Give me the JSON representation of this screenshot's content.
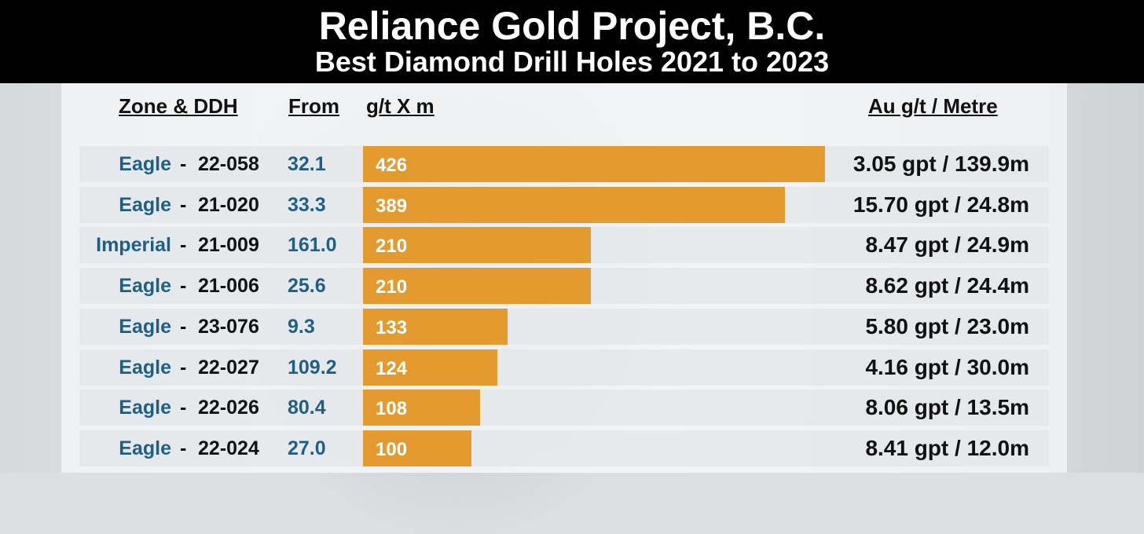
{
  "header": {
    "title": "Reliance Gold Project, B.C.",
    "subtitle": "Best Diamond Drill Holes 2021 to 2023"
  },
  "columns": {
    "zone_ddh": "Zone & DDH",
    "from": "From",
    "gtxm": "g/t X m",
    "au": "Au g/t / Metre"
  },
  "colors": {
    "bar": "#e39b30",
    "zone_text": "#1f5f86",
    "header_bg": "#000000"
  },
  "chart_data": {
    "type": "bar",
    "orientation": "horizontal",
    "xlim": [
      0,
      426
    ],
    "categories": [
      "22-058",
      "21-020",
      "21-009",
      "21-006",
      "23-076",
      "22-027",
      "22-026",
      "22-024"
    ],
    "values": [
      426,
      389,
      210,
      210,
      133,
      124,
      108,
      100
    ],
    "rows": [
      {
        "zone": "Eagle",
        "sep": "-",
        "ddh": "22-058",
        "from": "32.1",
        "gxm": 426,
        "grade": "3.05 gpt / 139.9m"
      },
      {
        "zone": "Eagle",
        "sep": "-",
        "ddh": "21-020",
        "from": "33.3",
        "gxm": 389,
        "grade": "15.70 gpt / 24.8m"
      },
      {
        "zone": "Imperial",
        "sep": "-",
        "ddh": "21-009",
        "from": "161.0",
        "gxm": 210,
        "grade": "8.47 gpt / 24.9m"
      },
      {
        "zone": "Eagle",
        "sep": "-",
        "ddh": "21-006",
        "from": "25.6",
        "gxm": 210,
        "grade": "8.62 gpt / 24.4m"
      },
      {
        "zone": "Eagle",
        "sep": "-",
        "ddh": "23-076",
        "from": "9.3",
        "gxm": 133,
        "grade": "5.80 gpt / 23.0m"
      },
      {
        "zone": "Eagle",
        "sep": "-",
        "ddh": "22-027",
        "from": "109.2",
        "gxm": 124,
        "grade": "4.16 gpt / 30.0m"
      },
      {
        "zone": "Eagle",
        "sep": "-",
        "ddh": "22-026",
        "from": "80.4",
        "gxm": 108,
        "grade": "8.06 gpt / 13.5m"
      },
      {
        "zone": "Eagle",
        "sep": "-",
        "ddh": "22-024",
        "from": "27.0",
        "gxm": 100,
        "grade": "8.41 gpt / 12.0m"
      }
    ]
  }
}
